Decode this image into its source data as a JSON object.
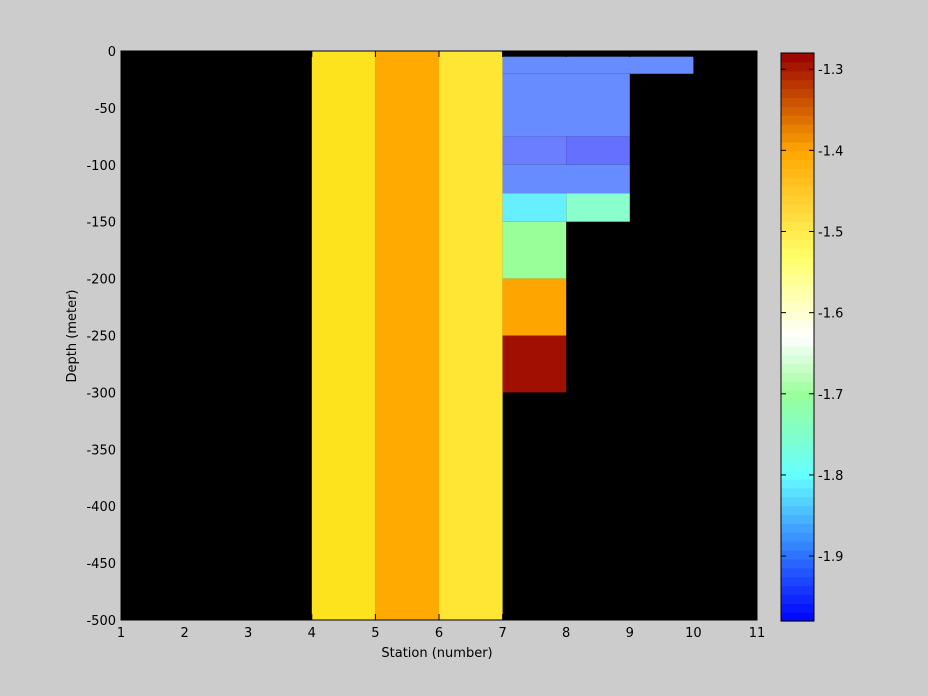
{
  "chart_data": {
    "type": "heatmap",
    "title": "",
    "xlabel": "Station (number)",
    "ylabel": "Depth (meter)",
    "xlim": [
      1,
      11
    ],
    "ylim": [
      -500,
      0
    ],
    "xticks": [
      1,
      2,
      3,
      4,
      5,
      6,
      7,
      8,
      9,
      10,
      11
    ],
    "yticks": [
      0,
      -50,
      -100,
      -150,
      -200,
      -250,
      -300,
      -350,
      -400,
      -450,
      -500
    ],
    "plot_background": "#000000",
    "cells": [
      {
        "x0": 4,
        "x1": 5,
        "y_top": 0,
        "y_bottom": -500,
        "color": "#fde21e"
      },
      {
        "x0": 5,
        "x1": 6,
        "y_top": 0,
        "y_bottom": -500,
        "color": "#feaa00"
      },
      {
        "x0": 6,
        "x1": 7,
        "y_top": 0,
        "y_bottom": -500,
        "color": "#ffe534"
      },
      {
        "x0": 7,
        "x1": 10,
        "y_top": -5,
        "y_bottom": -20,
        "color": "#668cff"
      },
      {
        "x0": 7,
        "x1": 9,
        "y_top": -20,
        "y_bottom": -75,
        "color": "#668cff"
      },
      {
        "x0": 7,
        "x1": 8,
        "y_top": -75,
        "y_bottom": -100,
        "color": "#6a7eff"
      },
      {
        "x0": 8,
        "x1": 9,
        "y_top": -75,
        "y_bottom": -100,
        "color": "#6670ff"
      },
      {
        "x0": 7,
        "x1": 9,
        "y_top": -100,
        "y_bottom": -125,
        "color": "#668cff"
      },
      {
        "x0": 7,
        "x1": 8,
        "y_top": -125,
        "y_bottom": -150,
        "color": "#66f0ff"
      },
      {
        "x0": 8,
        "x1": 9,
        "y_top": -125,
        "y_bottom": -150,
        "color": "#88ffcc"
      },
      {
        "x0": 7,
        "x1": 8,
        "y_top": -150,
        "y_bottom": -200,
        "color": "#99ff99"
      },
      {
        "x0": 7,
        "x1": 8,
        "y_top": -200,
        "y_bottom": -250,
        "color": "#ffa500"
      },
      {
        "x0": 7,
        "x1": 8,
        "y_top": -250,
        "y_bottom": -300,
        "color": "#a00f00"
      }
    ],
    "colorbar": {
      "range": [
        -1.98,
        -1.28
      ],
      "ticks": [
        "-1.3",
        "-1.4",
        "-1.5",
        "-1.6",
        "-1.7",
        "-1.8",
        "-1.9"
      ],
      "tick_values": [
        -1.3,
        -1.4,
        -1.5,
        -1.6,
        -1.7,
        -1.8,
        -1.9
      ],
      "stops": [
        {
          "v": -1.98,
          "color": "#0000ff"
        },
        {
          "v": -1.8,
          "color": "#66ffff"
        },
        {
          "v": -1.7,
          "color": "#99ff99"
        },
        {
          "v": -1.63,
          "color": "#ffffff"
        },
        {
          "v": -1.53,
          "color": "#ffff66"
        },
        {
          "v": -1.4,
          "color": "#ffa500"
        },
        {
          "v": -1.28,
          "color": "#990000"
        }
      ]
    }
  }
}
